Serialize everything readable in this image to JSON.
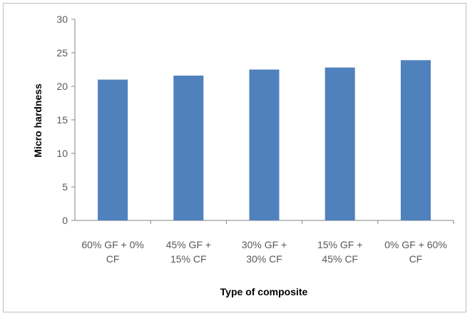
{
  "chart_data": {
    "type": "bar",
    "title": "",
    "xlabel": "Type of composite",
    "ylabel": "Micro hardness",
    "ylim": [
      0,
      30
    ],
    "yticks": [
      0,
      5,
      10,
      15,
      20,
      25,
      30
    ],
    "grid": false,
    "legend": "none",
    "bar_color": "#4f81bd",
    "categories": [
      [
        "60% GF + 0%",
        "CF"
      ],
      [
        "45% GF +",
        "15% CF"
      ],
      [
        "30% GF +",
        "30% CF"
      ],
      [
        "15% GF +",
        "45% CF"
      ],
      [
        "0% GF + 60%",
        "CF"
      ]
    ],
    "values": [
      21,
      21.6,
      22.5,
      22.8,
      23.9
    ]
  }
}
